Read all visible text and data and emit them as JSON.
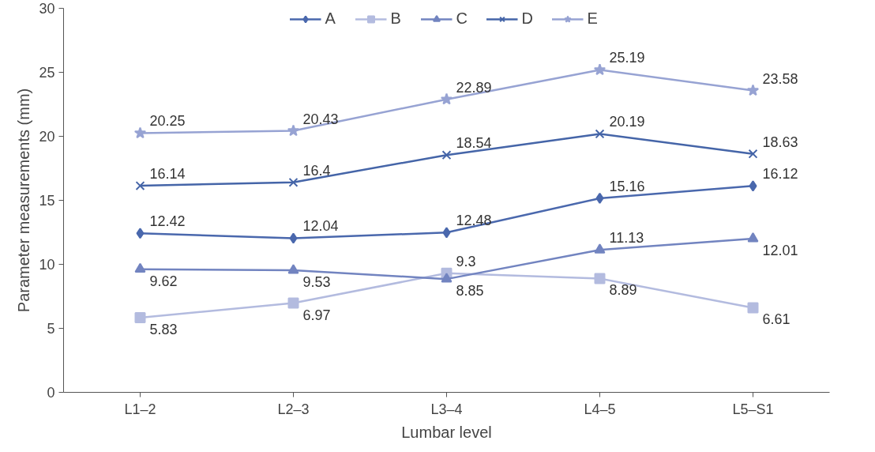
{
  "chart_data": {
    "type": "line",
    "xlabel": "Lumbar level",
    "ylabel": "Parameter measurements (mm)",
    "categories": [
      "L1–2",
      "L2–3",
      "L3–4",
      "L4–5",
      "L5–S1"
    ],
    "series": [
      {
        "name": "A",
        "color": "#4a68ad",
        "marker": "diamond",
        "values": [
          12.42,
          12.04,
          12.48,
          15.16,
          16.12
        ]
      },
      {
        "name": "B",
        "color": "#b3bbdf",
        "marker": "square",
        "values": [
          5.83,
          6.97,
          9.3,
          8.89,
          6.61
        ]
      },
      {
        "name": "C",
        "color": "#7284c0",
        "marker": "triangle",
        "values": [
          9.62,
          9.53,
          8.85,
          11.13,
          12.01
        ]
      },
      {
        "name": "D",
        "color": "#4565a8",
        "marker": "cross",
        "values": [
          16.14,
          16.4,
          18.54,
          20.19,
          18.63
        ]
      },
      {
        "name": "E",
        "color": "#97a3d3",
        "marker": "star",
        "values": [
          20.25,
          20.43,
          22.89,
          25.19,
          23.58
        ]
      }
    ],
    "ylim": [
      0,
      30
    ],
    "yticks": [
      0,
      5,
      10,
      15,
      20,
      25,
      30
    ],
    "grid": false,
    "legend": "top",
    "data_labels": true
  }
}
